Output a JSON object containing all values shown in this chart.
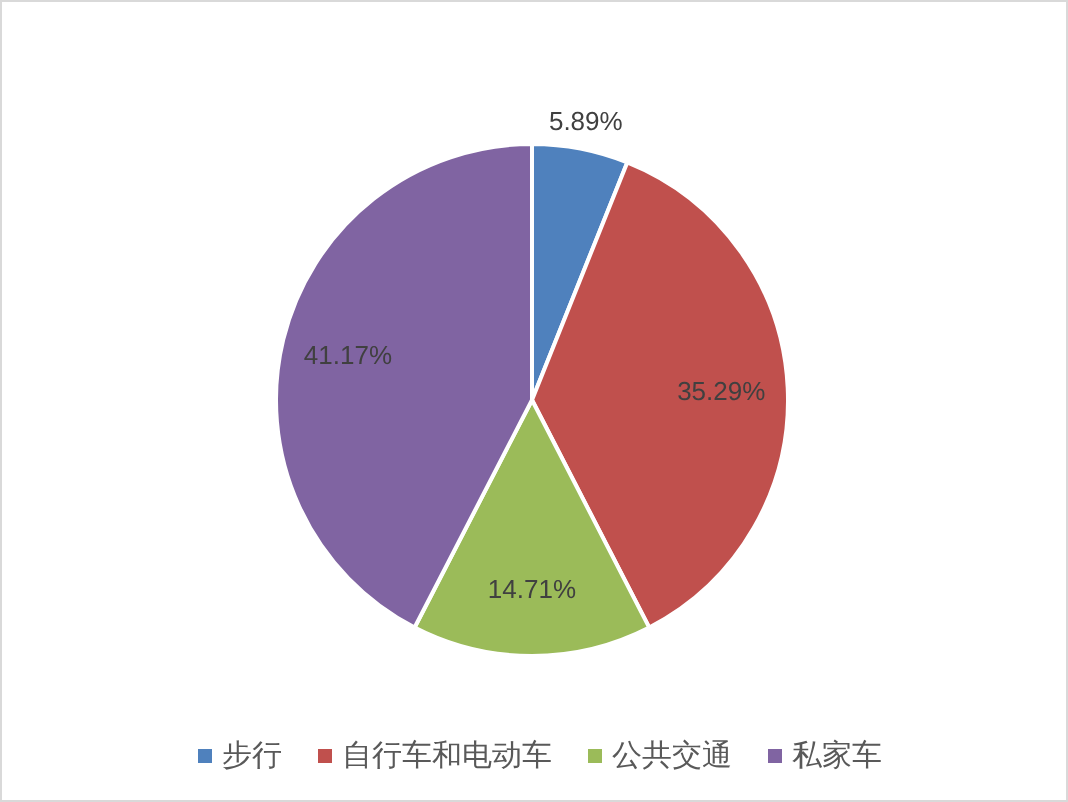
{
  "chart_data": {
    "type": "pie",
    "categories": [
      "步行",
      "自行车和电动车",
      "公共交通",
      "私家车"
    ],
    "values": [
      5.89,
      35.29,
      14.71,
      41.17
    ],
    "value_labels": [
      "5.89%",
      "35.29%",
      "14.71%",
      "41.17%"
    ],
    "colors": [
      "#4f81bd",
      "#c0504d",
      "#9bbb59",
      "#8064a2"
    ],
    "legend": "bottom"
  }
}
